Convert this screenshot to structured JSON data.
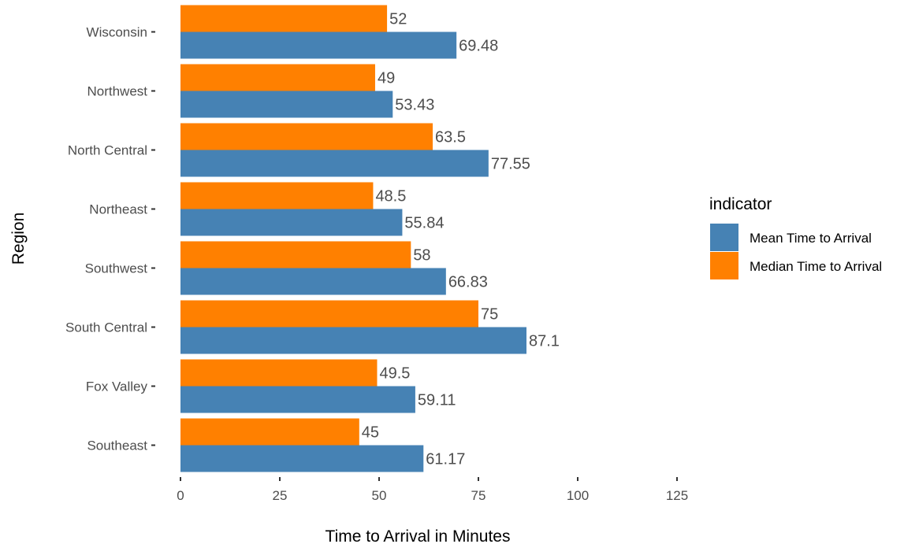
{
  "chart_data": {
    "type": "bar",
    "orientation": "horizontal",
    "categories": [
      "Wisconsin",
      "Northwest",
      "North Central",
      "Northeast",
      "Southwest",
      "South Central",
      "Fox Valley",
      "Southeast"
    ],
    "series": [
      {
        "name": "Median Time to Arrival",
        "color": "#ff8000",
        "values": [
          52,
          49,
          63.5,
          48.5,
          58,
          75,
          49.5,
          45
        ],
        "labels": [
          "52",
          "49",
          "63.5",
          "48.5",
          "58",
          "75",
          "49.5",
          "45"
        ]
      },
      {
        "name": "Mean Time to Arrival",
        "color": "#4682b4",
        "values": [
          69.48,
          53.43,
          77.55,
          55.84,
          66.83,
          87.1,
          59.11,
          61.17
        ],
        "labels": [
          "69.48",
          "53.43",
          "77.55",
          "55.84",
          "66.83",
          "87.1",
          "59.11",
          "61.17"
        ]
      }
    ],
    "xlabel": "Time to Arrival in Minutes",
    "ylabel": "Region",
    "xlim": [
      0,
      125
    ],
    "xticks": [
      0,
      25,
      50,
      75,
      100,
      125
    ],
    "xtick_labels": [
      "0",
      "25",
      "50",
      "75",
      "100",
      "125"
    ],
    "grid": false,
    "legend": {
      "title": "indicator",
      "placement": "right",
      "entries": [
        {
          "label": "Mean Time to Arrival",
          "color": "#4682b4"
        },
        {
          "label": "Median Time to Arrival",
          "color": "#ff8000"
        }
      ]
    }
  }
}
